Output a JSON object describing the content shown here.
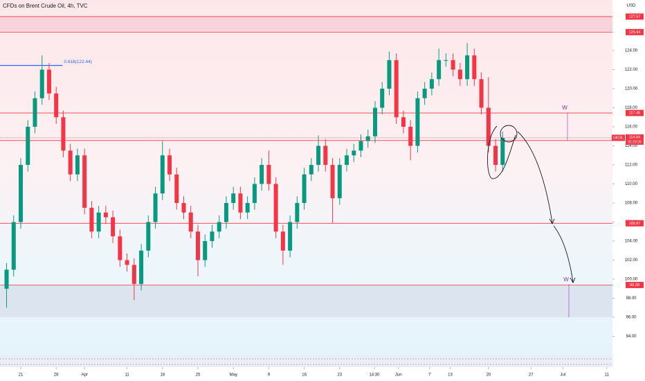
{
  "chart_data": {
    "type": "candlestick",
    "title": "CFDs on Brent Crude Oil, 4h, TVC",
    "currency": "USD",
    "symbol": "UKOIL",
    "countdown": "01:23:26",
    "last_price": 114.84,
    "up_color": "#089981",
    "down_color": "#f23645",
    "x": [
      -2,
      -1,
      0,
      1,
      2,
      3,
      4,
      5,
      6,
      7,
      8,
      9,
      10,
      11,
      12,
      13,
      14,
      15,
      16,
      17,
      18,
      19,
      20,
      21,
      22,
      23,
      24,
      25,
      26,
      27,
      28,
      29,
      30,
      31,
      32,
      33,
      34,
      35,
      36,
      37,
      38,
      39,
      40,
      41,
      42,
      43,
      44,
      45,
      46,
      47,
      48,
      49,
      50,
      51,
      52,
      53,
      54,
      55,
      56,
      57,
      58,
      59,
      60,
      61,
      62,
      63,
      64,
      65,
      66,
      67,
      68
    ],
    "open": [
      99,
      101,
      106,
      112,
      116,
      119,
      122,
      119.5,
      117,
      113.5,
      111,
      113,
      107.5,
      105,
      107,
      106.5,
      104.5,
      102,
      101.5,
      99.5,
      103,
      106,
      109,
      113,
      111,
      108,
      107,
      105,
      102,
      104,
      105,
      106,
      108,
      109,
      107,
      108,
      110,
      112,
      110,
      105,
      103,
      106,
      108,
      111,
      112,
      114,
      112,
      108.5,
      112,
      113,
      113.5,
      114.5,
      115,
      118,
      120,
      123,
      117,
      116,
      114,
      119,
      120,
      121,
      123,
      123,
      122,
      121,
      123.5,
      121,
      118,
      114,
      112
    ],
    "high": [
      101.7,
      106.7,
      112.7,
      116.7,
      119.7,
      123.5,
      122.7,
      120.2,
      117.7,
      114.2,
      113.7,
      113.7,
      108.2,
      107.7,
      107.7,
      107.2,
      105.2,
      102.7,
      102.2,
      103.7,
      106.7,
      109.7,
      114.5,
      113.7,
      111.7,
      108.7,
      107.7,
      105.7,
      104.7,
      105.7,
      106.7,
      108.7,
      109.7,
      109.7,
      108.7,
      110.7,
      112.7,
      113.5,
      110.7,
      105.7,
      106.7,
      108.7,
      111.7,
      112.7,
      115.1,
      114.7,
      112.7,
      112.7,
      113.7,
      114.2,
      115.2,
      115.7,
      118.7,
      120.7,
      123.9,
      123.7,
      117.7,
      116.7,
      119.7,
      120.7,
      121.7,
      124.2,
      123.7,
      123.7,
      122.7,
      124.8,
      124.2,
      121.7,
      121.2,
      114.7,
      115.5
    ],
    "low": [
      97,
      100.3,
      105.3,
      111.3,
      115.3,
      118.3,
      118.8,
      116.3,
      112.8,
      110.3,
      110.3,
      106.8,
      104.3,
      104.3,
      105.8,
      103.8,
      101.3,
      100.8,
      97.8,
      98.8,
      102.3,
      105.3,
      108.3,
      110.3,
      107.3,
      106.3,
      104.3,
      100.3,
      101.3,
      103.3,
      104.3,
      105.3,
      107.3,
      106.3,
      106.3,
      107.3,
      109.3,
      109.3,
      104.3,
      101.5,
      102.3,
      105.3,
      107.3,
      110.3,
      111.3,
      111.3,
      105.9,
      107.8,
      111.3,
      112.3,
      112.8,
      113.8,
      114.3,
      117.3,
      119.3,
      116.3,
      115.3,
      112.5,
      113.3,
      118.3,
      119.3,
      120.3,
      122.3,
      121.3,
      120.3,
      120.3,
      120.3,
      117.3,
      113.3,
      111.3,
      111.3
    ],
    "close": [
      101,
      106,
      112,
      116,
      119,
      122,
      119.5,
      117,
      113.5,
      111,
      113,
      107.5,
      105,
      107,
      106.5,
      104.5,
      102,
      101.5,
      99.5,
      103,
      106,
      109,
      113,
      111,
      108,
      107,
      105,
      102,
      104,
      105,
      106,
      108,
      109,
      107,
      108,
      110,
      112,
      110,
      105,
      103,
      106,
      108,
      111,
      112,
      114,
      112,
      108.5,
      112,
      113,
      113.5,
      114.5,
      115,
      118,
      120,
      123,
      117,
      116,
      114,
      119,
      120,
      121,
      123,
      123,
      122,
      121,
      123.5,
      121,
      118,
      114,
      112,
      114.84
    ],
    "xlim": [
      -2.93,
      83.5
    ],
    "xticks": [
      {
        "value": 0,
        "label": "21"
      },
      {
        "value": 5,
        "label": "28"
      },
      {
        "value": 9,
        "label": "Apr"
      },
      {
        "value": 15,
        "label": "11"
      },
      {
        "value": 20,
        "label": "18"
      },
      {
        "value": 25,
        "label": "25"
      },
      {
        "value": 30,
        "label": "May"
      },
      {
        "value": 35,
        "label": "9"
      },
      {
        "value": 40,
        "label": "16"
      },
      {
        "value": 45,
        "label": "23"
      },
      {
        "value": 49.9,
        "label": "14:30"
      },
      {
        "value": 53.3,
        "label": "Jun"
      },
      {
        "value": 57.7,
        "label": "7"
      },
      {
        "value": 60.6,
        "label": "13"
      },
      {
        "value": 66,
        "label": "20"
      },
      {
        "value": 72,
        "label": "27"
      },
      {
        "value": 76.5,
        "label": "Jul"
      },
      {
        "value": 82.7,
        "label": "11"
      }
    ],
    "ylim": [
      92.22,
      129.31
    ],
    "yticks": [
      {
        "value": 94,
        "label": "94.00"
      },
      {
        "value": 96,
        "label": "96.00"
      },
      {
        "value": 98,
        "label": "98.00"
      },
      {
        "value": 100,
        "label": "100.00"
      },
      {
        "value": 102,
        "label": "102.00"
      },
      {
        "value": 104,
        "label": "104.00"
      },
      {
        "value": 106,
        "label": "106.00"
      },
      {
        "value": 108,
        "label": "108.00"
      },
      {
        "value": 110,
        "label": "110.00"
      },
      {
        "value": 112,
        "label": "112.00"
      },
      {
        "value": 114,
        "label": "114.00"
      },
      {
        "value": 116,
        "label": "116.00"
      },
      {
        "value": 118,
        "label": "118.00"
      },
      {
        "value": 120,
        "label": "120.00"
      },
      {
        "value": 122,
        "label": "122.00"
      },
      {
        "value": 124,
        "label": "124.00"
      }
    ],
    "levels": [
      127.57,
      125.94,
      117.45,
      114.56,
      105.87,
      99.39
    ],
    "level_color": "#f23645",
    "zones": [
      {
        "from": 125.94,
        "to": 127.57,
        "color": "#f7cfd8"
      },
      {
        "from": 96,
        "to": 99.39,
        "color": "#d9e2ec"
      }
    ],
    "fib": {
      "label": "0.618(122.44)",
      "value": 122.44,
      "x_end": 5.9,
      "color": "#2962ff"
    },
    "annotations": [
      "W",
      "W"
    ],
    "annotation_color": "#9c27b0"
  }
}
